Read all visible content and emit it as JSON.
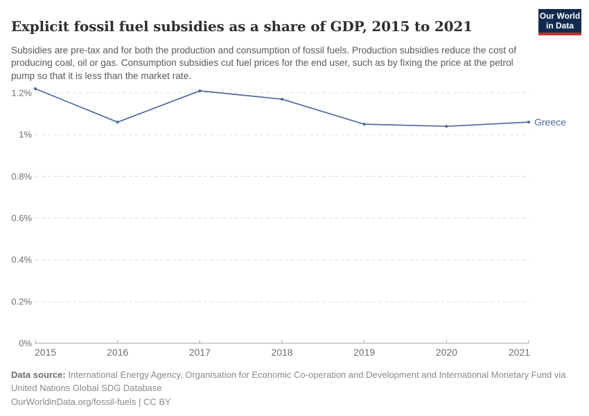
{
  "header": {
    "title": "Explicit fossil fuel subsidies as a share of GDP, 2015 to 2021",
    "subtitle": "Subsidies are pre-tax and for both the production and consumption of fossil fuels. Production subsidies reduce the cost of producing coal, oil or gas. Consumption subsidies cut fuel prices for the end user, such as by fixing the price at the petrol pump so that it is less than the market rate.",
    "logo": {
      "line1": "Our World",
      "line2": "in Data",
      "bg_color": "#122a4e",
      "stripe_color": "#bd352b"
    }
  },
  "chart_data": {
    "type": "line",
    "title": "Explicit fossil fuel subsidies as a share of GDP, 2015 to 2021",
    "x": [
      2015,
      2016,
      2017,
      2018,
      2019,
      2020,
      2021
    ],
    "x_labels": [
      "2015",
      "2016",
      "2017",
      "2018",
      "2019",
      "2020",
      "2021"
    ],
    "series": [
      {
        "name": "Greece",
        "values": [
          1.22,
          1.06,
          1.21,
          1.17,
          1.05,
          1.04,
          1.06
        ],
        "color": "#4c6a9c"
      }
    ],
    "xlabel": "",
    "ylabel": "",
    "ylim": [
      0,
      1.3
    ],
    "yticks": [
      {
        "value": 0,
        "label": "0%"
      },
      {
        "value": 0.2,
        "label": "0.2%"
      },
      {
        "value": 0.4,
        "label": "0.4%"
      },
      {
        "value": 0.6,
        "label": "0.6%"
      },
      {
        "value": 0.8,
        "label": "0.8%"
      },
      {
        "value": 1.0,
        "label": "1%"
      },
      {
        "value": 1.2,
        "label": "1.2%"
      }
    ],
    "grid": "horizontal-dashed",
    "legend_position": "end-of-line-label",
    "colors": {
      "line": "#4c6a9c",
      "gridline": "#dcdcdc",
      "axis": "#a3a3a3",
      "tick_label": "#6f6f6f"
    }
  },
  "footer": {
    "datasource_label": "Data source:",
    "datasource_text": " International Energy Agency, Organisation for Economic Co-operation and Development and International Monetary Fund via United Nations Global SDG Database",
    "license_line": "OurWorldinData.org/fossil-fuels | CC BY"
  }
}
